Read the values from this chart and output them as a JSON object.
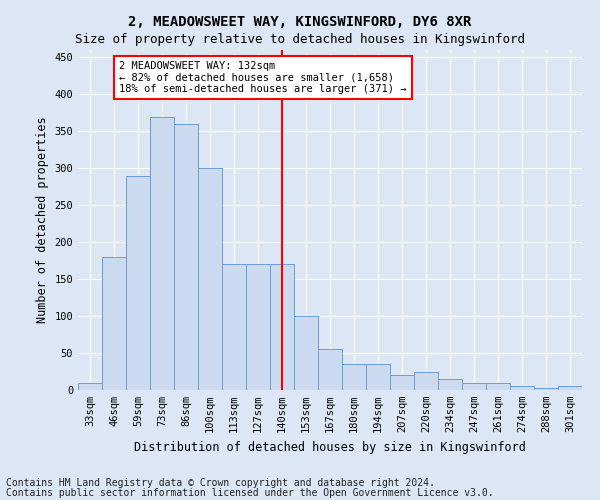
{
  "title": "2, MEADOWSWEET WAY, KINGSWINFORD, DY6 8XR",
  "subtitle": "Size of property relative to detached houses in Kingswinford",
  "xlabel": "Distribution of detached houses by size in Kingswinford",
  "ylabel": "Number of detached properties",
  "categories": [
    "33sqm",
    "46sqm",
    "59sqm",
    "73sqm",
    "86sqm",
    "100sqm",
    "113sqm",
    "127sqm",
    "140sqm",
    "153sqm",
    "167sqm",
    "180sqm",
    "194sqm",
    "207sqm",
    "220sqm",
    "234sqm",
    "247sqm",
    "261sqm",
    "274sqm",
    "288sqm",
    "301sqm"
  ],
  "values": [
    10,
    180,
    290,
    370,
    360,
    300,
    170,
    170,
    170,
    100,
    55,
    35,
    35,
    20,
    25,
    15,
    10,
    10,
    5,
    3,
    5
  ],
  "bar_color": "#ccdaf0",
  "bar_edge_color": "#6a9fd8",
  "vline_x": 8.0,
  "vline_color": "red",
  "annotation_text": "2 MEADOWSWEET WAY: 132sqm\n← 82% of detached houses are smaller (1,658)\n18% of semi-detached houses are larger (371) →",
  "annotation_box_color": "white",
  "annotation_box_edge_color": "red",
  "ylim": [
    0,
    460
  ],
  "yticks": [
    0,
    50,
    100,
    150,
    200,
    250,
    300,
    350,
    400,
    450
  ],
  "footer_line1": "Contains HM Land Registry data © Crown copyright and database right 2024.",
  "footer_line2": "Contains public sector information licensed under the Open Government Licence v3.0.",
  "bg_color": "#dce6f5",
  "plot_bg_color": "#dce6f5",
  "title_fontsize": 10,
  "subtitle_fontsize": 9,
  "tick_fontsize": 7.5,
  "ylabel_fontsize": 8.5,
  "xlabel_fontsize": 8.5,
  "footer_fontsize": 7,
  "annot_fontsize": 7.5
}
